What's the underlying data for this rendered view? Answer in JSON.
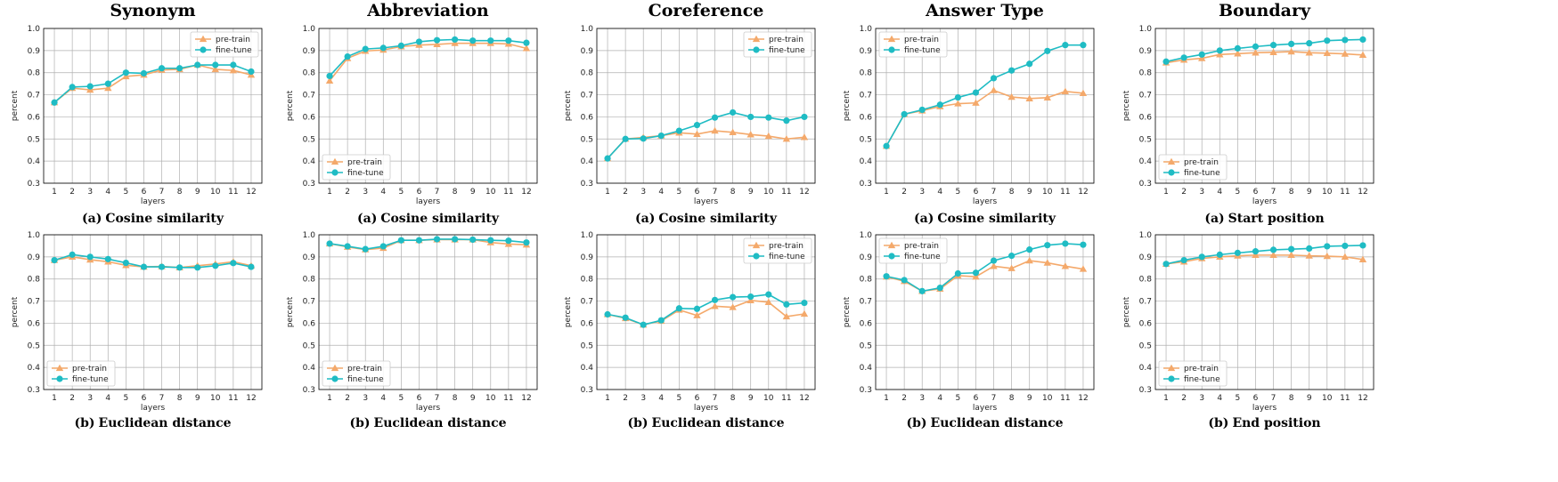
{
  "colors": {
    "pretrain": "#f4a96b",
    "finetune": "#1fbcc4",
    "grid": "#b0b0b0",
    "axis": "#000000"
  },
  "chart_data": [
    {
      "type": "line",
      "column_title": "Synonym",
      "caption_label": "(a)",
      "caption_text": "Cosine similarity",
      "xlabel": "layers",
      "ylabel": "percent",
      "ylim": [
        0.3,
        1.0
      ],
      "legend": "top-right",
      "x": [
        1,
        2,
        3,
        4,
        5,
        6,
        7,
        8,
        9,
        10,
        11,
        12
      ],
      "series": [
        {
          "name": "pre-train",
          "values": [
            0.665,
            0.73,
            0.722,
            0.73,
            0.783,
            0.79,
            0.812,
            0.815,
            0.835,
            0.815,
            0.81,
            0.79
          ]
        },
        {
          "name": "fine-tune",
          "values": [
            0.665,
            0.735,
            0.738,
            0.75,
            0.8,
            0.797,
            0.82,
            0.82,
            0.835,
            0.835,
            0.835,
            0.805
          ]
        }
      ]
    },
    {
      "type": "line",
      "column_title": "Abbreviation",
      "caption_label": "(a)",
      "caption_text": "Cosine similarity",
      "xlabel": "layers",
      "ylabel": "percent",
      "ylim": [
        0.3,
        1.0
      ],
      "legend": "bottom-left",
      "x": [
        1,
        2,
        3,
        4,
        5,
        6,
        7,
        8,
        9,
        10,
        11,
        12
      ],
      "series": [
        {
          "name": "pre-train",
          "values": [
            0.763,
            0.865,
            0.898,
            0.903,
            0.918,
            0.925,
            0.928,
            0.933,
            0.933,
            0.933,
            0.93,
            0.91
          ]
        },
        {
          "name": "fine-tune",
          "values": [
            0.785,
            0.873,
            0.907,
            0.912,
            0.922,
            0.94,
            0.947,
            0.95,
            0.945,
            0.945,
            0.945,
            0.935
          ]
        }
      ]
    },
    {
      "type": "line",
      "column_title": "Coreference",
      "caption_label": "(a)",
      "caption_text": "Cosine similarity",
      "xlabel": "layers",
      "ylabel": "percent",
      "ylim": [
        0.3,
        1.0
      ],
      "legend": "top-right",
      "x": [
        1,
        2,
        3,
        4,
        5,
        6,
        7,
        8,
        9,
        10,
        11,
        12
      ],
      "series": [
        {
          "name": "pre-train",
          "values": [
            0.412,
            0.5,
            0.507,
            0.515,
            0.528,
            0.522,
            0.537,
            0.53,
            0.52,
            0.513,
            0.5,
            0.508
          ]
        },
        {
          "name": "fine-tune",
          "values": [
            0.412,
            0.5,
            0.502,
            0.515,
            0.537,
            0.563,
            0.597,
            0.62,
            0.6,
            0.597,
            0.583,
            0.6
          ]
        }
      ]
    },
    {
      "type": "line",
      "column_title": "Answer Type",
      "caption_label": "(a)",
      "caption_text": "Cosine similarity",
      "xlabel": "layers",
      "ylabel": "percent",
      "ylim": [
        0.3,
        1.0
      ],
      "legend": "top-left",
      "x": [
        1,
        2,
        3,
        4,
        5,
        6,
        7,
        8,
        9,
        10,
        11,
        12
      ],
      "series": [
        {
          "name": "pre-train",
          "values": [
            0.468,
            0.612,
            0.628,
            0.647,
            0.66,
            0.663,
            0.72,
            0.69,
            0.683,
            0.687,
            0.715,
            0.707
          ]
        },
        {
          "name": "fine-tune",
          "values": [
            0.468,
            0.612,
            0.632,
            0.655,
            0.688,
            0.71,
            0.775,
            0.81,
            0.84,
            0.898,
            0.925,
            0.925
          ]
        }
      ]
    },
    {
      "type": "line",
      "column_title": "Boundary",
      "caption_label": "(a)",
      "caption_text": "Start position",
      "xlabel": "layers",
      "ylabel": "percent",
      "ylim": [
        0.3,
        1.0
      ],
      "legend": "bottom-left",
      "x": [
        1,
        2,
        3,
        4,
        5,
        6,
        7,
        8,
        9,
        10,
        11,
        12
      ],
      "series": [
        {
          "name": "pre-train",
          "values": [
            0.845,
            0.858,
            0.865,
            0.882,
            0.886,
            0.89,
            0.892,
            0.895,
            0.89,
            0.888,
            0.885,
            0.88
          ]
        },
        {
          "name": "fine-tune",
          "values": [
            0.85,
            0.868,
            0.882,
            0.9,
            0.91,
            0.918,
            0.925,
            0.93,
            0.933,
            0.945,
            0.948,
            0.95
          ]
        }
      ]
    },
    {
      "type": "line",
      "caption_label": "(b)",
      "caption_text": "Euclidean distance",
      "xlabel": "layers",
      "ylabel": "percent",
      "ylim": [
        0.3,
        1.0
      ],
      "legend": "bottom-left",
      "x": [
        1,
        2,
        3,
        4,
        5,
        6,
        7,
        8,
        9,
        10,
        11,
        12
      ],
      "series": [
        {
          "name": "pre-train",
          "values": [
            0.885,
            0.9,
            0.887,
            0.878,
            0.862,
            0.855,
            0.857,
            0.852,
            0.86,
            0.868,
            0.878,
            0.86
          ]
        },
        {
          "name": "fine-tune",
          "values": [
            0.885,
            0.91,
            0.9,
            0.89,
            0.873,
            0.855,
            0.855,
            0.852,
            0.852,
            0.86,
            0.872,
            0.855
          ]
        }
      ]
    },
    {
      "type": "line",
      "caption_label": "(b)",
      "caption_text": "Euclidean distance",
      "xlabel": "layers",
      "ylabel": "percent",
      "ylim": [
        0.3,
        1.0
      ],
      "legend": "bottom-left",
      "x": [
        1,
        2,
        3,
        4,
        5,
        6,
        7,
        8,
        9,
        10,
        11,
        12
      ],
      "series": [
        {
          "name": "pre-train",
          "values": [
            0.96,
            0.945,
            0.933,
            0.94,
            0.975,
            0.975,
            0.978,
            0.978,
            0.978,
            0.965,
            0.958,
            0.955
          ]
        },
        {
          "name": "fine-tune",
          "values": [
            0.96,
            0.948,
            0.935,
            0.948,
            0.975,
            0.975,
            0.98,
            0.98,
            0.978,
            0.975,
            0.973,
            0.965
          ]
        }
      ]
    },
    {
      "type": "line",
      "caption_label": "(b)",
      "caption_text": "Euclidean distance",
      "xlabel": "layers",
      "ylabel": "percent",
      "ylim": [
        0.3,
        1.0
      ],
      "legend": "top-right",
      "x": [
        1,
        2,
        3,
        4,
        5,
        6,
        7,
        8,
        9,
        10,
        11,
        12
      ],
      "series": [
        {
          "name": "pre-train",
          "values": [
            0.64,
            0.622,
            0.593,
            0.61,
            0.66,
            0.635,
            0.677,
            0.672,
            0.703,
            0.695,
            0.63,
            0.642
          ]
        },
        {
          "name": "fine-tune",
          "values": [
            0.64,
            0.625,
            0.593,
            0.613,
            0.667,
            0.665,
            0.705,
            0.718,
            0.72,
            0.73,
            0.685,
            0.692
          ]
        }
      ]
    },
    {
      "type": "line",
      "caption_label": "(b)",
      "caption_text": "Euclidean distance",
      "xlabel": "layers",
      "ylabel": "percent",
      "ylim": [
        0.3,
        1.0
      ],
      "legend": "top-left",
      "x": [
        1,
        2,
        3,
        4,
        5,
        6,
        7,
        8,
        9,
        10,
        11,
        12
      ],
      "series": [
        {
          "name": "pre-train",
          "values": [
            0.81,
            0.79,
            0.745,
            0.755,
            0.815,
            0.81,
            0.858,
            0.848,
            0.883,
            0.873,
            0.858,
            0.845
          ]
        },
        {
          "name": "fine-tune",
          "values": [
            0.812,
            0.795,
            0.745,
            0.76,
            0.825,
            0.828,
            0.883,
            0.905,
            0.933,
            0.953,
            0.96,
            0.955
          ]
        }
      ]
    },
    {
      "type": "line",
      "caption_label": "(b)",
      "caption_text": "End position",
      "xlabel": "layers",
      "ylabel": "percent",
      "ylim": [
        0.3,
        1.0
      ],
      "legend": "bottom-left",
      "x": [
        1,
        2,
        3,
        4,
        5,
        6,
        7,
        8,
        9,
        10,
        11,
        12
      ],
      "series": [
        {
          "name": "pre-train",
          "values": [
            0.868,
            0.878,
            0.893,
            0.9,
            0.905,
            0.908,
            0.908,
            0.908,
            0.905,
            0.903,
            0.9,
            0.888
          ]
        },
        {
          "name": "fine-tune",
          "values": [
            0.868,
            0.885,
            0.9,
            0.91,
            0.918,
            0.925,
            0.932,
            0.935,
            0.938,
            0.948,
            0.95,
            0.952
          ]
        }
      ]
    }
  ]
}
